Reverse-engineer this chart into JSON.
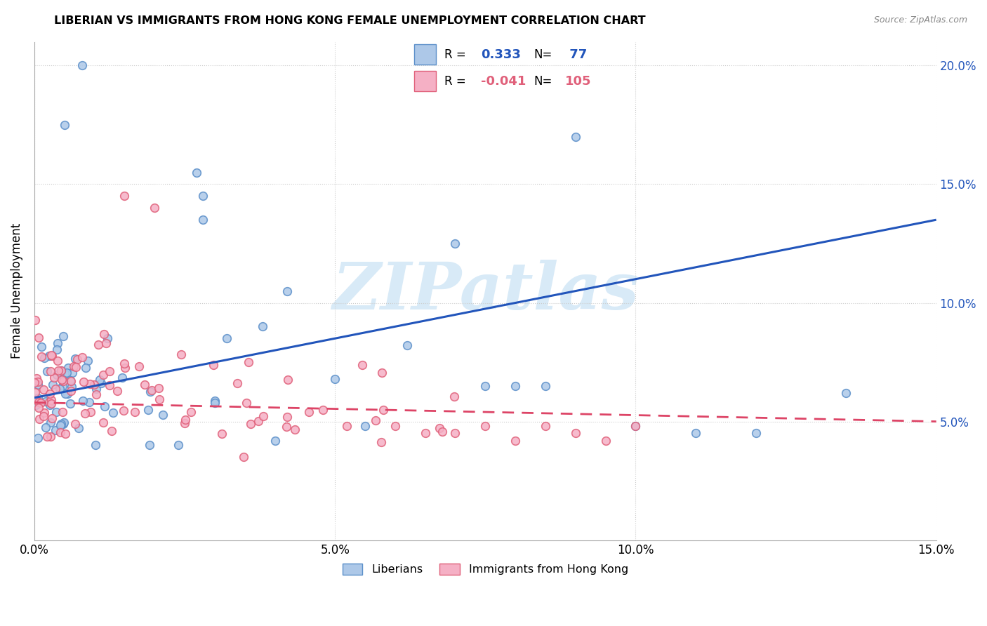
{
  "title": "LIBERIAN VS IMMIGRANTS FROM HONG KONG FEMALE UNEMPLOYMENT CORRELATION CHART",
  "source": "Source: ZipAtlas.com",
  "ylabel": "Female Unemployment",
  "x_min": 0.0,
  "x_max": 0.15,
  "y_min": 0.0,
  "y_max": 0.21,
  "x_ticks": [
    0.0,
    0.05,
    0.1,
    0.15
  ],
  "x_tick_labels": [
    "0.0%",
    "5.0%",
    "10.0%",
    "15.0%"
  ],
  "y_ticks": [
    0.05,
    0.1,
    0.15,
    0.2
  ],
  "y_tick_labels_right": [
    "5.0%",
    "10.0%",
    "15.0%",
    "20.0%"
  ],
  "liberian_color": "#adc8e8",
  "hk_color": "#f5b0c5",
  "liberian_edge_color": "#5b8fc9",
  "hk_edge_color": "#e0607a",
  "line_liberian_color": "#2255bb",
  "line_hk_color": "#dd4466",
  "line_hk_style": "dashed",
  "R_liberian": 0.333,
  "N_liberian": 77,
  "R_hk": -0.041,
  "N_hk": 105,
  "watermark_text": "ZIPatlas",
  "watermark_color": "#d8eaf7",
  "legend_label_1": "Liberians",
  "legend_label_2": "Immigrants from Hong Kong",
  "lib_line_x0": 0.0,
  "lib_line_y0": 0.06,
  "lib_line_x1": 0.15,
  "lib_line_y1": 0.135,
  "hk_line_x0": 0.0,
  "hk_line_y0": 0.058,
  "hk_line_x1": 0.15,
  "hk_line_y1": 0.05,
  "marker_size": 70
}
